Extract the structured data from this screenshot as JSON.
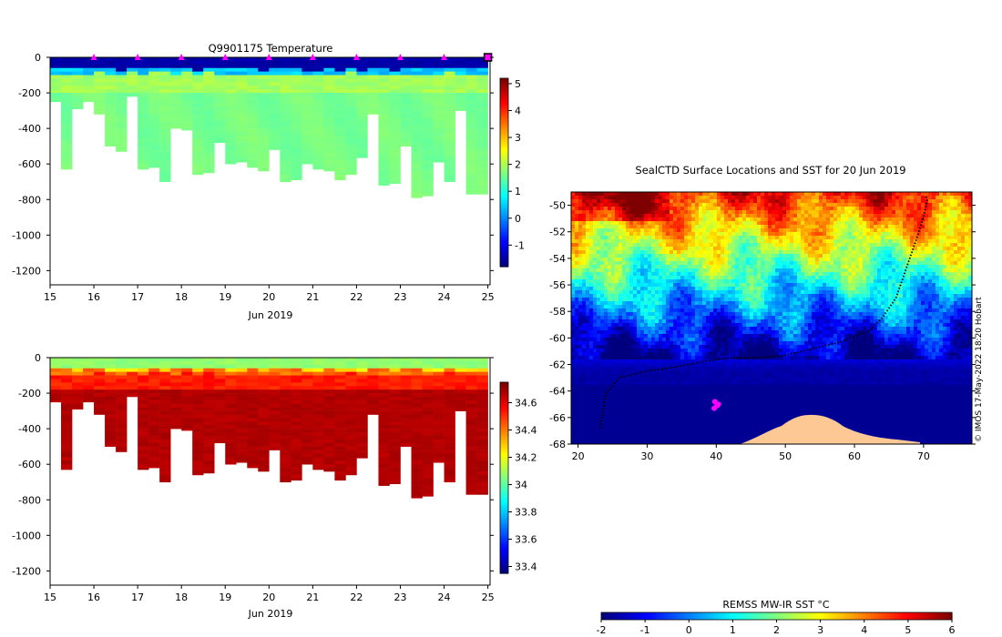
{
  "chart_data": [
    {
      "type": "heatmap",
      "title": "Q9901175  Temperature",
      "xlabel": "Jun 2019",
      "x_ticks": [
        "15",
        "16",
        "17",
        "18",
        "19",
        "20",
        "21",
        "22",
        "23",
        "24",
        "25"
      ],
      "xlim": [
        15,
        25.05
      ],
      "ylim": [
        -1280,
        0
      ],
      "y_ticks": [
        "0",
        "-200",
        "-400",
        "-600",
        "-800",
        "-1000",
        "-1200"
      ],
      "y_tick_values": [
        0,
        -200,
        -400,
        -600,
        -800,
        -1000,
        -1200
      ],
      "profile_markers_day": [
        16,
        17,
        18,
        19,
        20,
        21,
        22,
        23,
        24
      ],
      "last_marker_day": 25,
      "colorbar": {
        "min": -1.8,
        "max": 5.2,
        "ticks": [
          "-1",
          "0",
          "1",
          "2",
          "3",
          "4",
          "5"
        ],
        "tick_values": [
          -1,
          0,
          1,
          2,
          3,
          4,
          5
        ],
        "colors": [
          "#00007f",
          "#0000ff",
          "#0080ff",
          "#00ffff",
          "#80ff80",
          "#ffff00",
          "#ff8000",
          "#ff0000",
          "#7f0000"
        ]
      },
      "surface_value": -1.6,
      "thermocline_value": 0.2,
      "deep_value": 1.6,
      "profile_start_day": [
        15.0,
        15.25,
        15.5,
        15.75,
        16.0,
        16.25,
        16.5,
        16.75,
        17.0,
        17.25,
        17.5,
        17.75,
        18.0,
        18.25,
        18.5,
        18.75,
        19.0,
        19.25,
        19.5,
        19.75,
        20.0,
        20.25,
        20.5,
        20.75,
        21.0,
        21.25,
        21.5,
        21.75,
        22.0,
        22.25,
        22.5,
        22.75,
        23.0,
        23.25,
        23.5,
        23.75,
        24.0,
        24.25,
        24.5,
        24.75
      ],
      "profile_max_depth": [
        -250,
        -630,
        -290,
        -250,
        -320,
        -500,
        -530,
        -220,
        -630,
        -620,
        -700,
        -400,
        -410,
        -660,
        -650,
        -480,
        -600,
        -590,
        -620,
        -640,
        -520,
        -700,
        -690,
        -600,
        -630,
        -640,
        -690,
        -660,
        -565,
        -320,
        -720,
        -710,
        -500,
        -790,
        -780,
        -590,
        -700,
        -300,
        -770,
        -770
      ]
    },
    {
      "type": "heatmap",
      "title": "",
      "xlabel": "Jun 2019",
      "x_ticks": [
        "15",
        "16",
        "17",
        "18",
        "19",
        "20",
        "21",
        "22",
        "23",
        "24",
        "25"
      ],
      "xlim": [
        15,
        25.05
      ],
      "ylim": [
        -1280,
        0
      ],
      "y_ticks": [
        "0",
        "-200",
        "-400",
        "-600",
        "-800",
        "-1000",
        "-1200"
      ],
      "y_tick_values": [
        0,
        -200,
        -400,
        -600,
        -800,
        -1000,
        -1200
      ],
      "colorbar": {
        "min": 33.35,
        "max": 34.75,
        "ticks": [
          "33.4",
          "33.6",
          "33.8",
          "34",
          "34.2",
          "34.4",
          "34.6"
        ],
        "tick_values": [
          33.4,
          33.6,
          33.8,
          34.0,
          34.2,
          34.4,
          34.6
        ],
        "colors": [
          "#00007f",
          "#0000ff",
          "#0080ff",
          "#00ffff",
          "#80ff80",
          "#ffff00",
          "#ff8000",
          "#ff0000",
          "#7f0000"
        ]
      },
      "surface_value": 34.05,
      "mid_value": 34.55,
      "deep_value": 34.68
    },
    {
      "type": "heatmap",
      "title": "SealCTD Surface Locations and SST for 20 Jun 2019",
      "xlabel": "",
      "x_ticks": [
        "20",
        "30",
        "40",
        "50",
        "60",
        "70"
      ],
      "x_tick_values": [
        20,
        30,
        40,
        50,
        60,
        70
      ],
      "xlim": [
        19,
        77
      ],
      "ylim": [
        -68,
        -49
      ],
      "y_ticks": [
        "-50",
        "-52",
        "-54",
        "-56",
        "-58",
        "-60",
        "-62",
        "-64",
        "-66",
        "-68"
      ],
      "y_tick_values": [
        -50,
        -52,
        -54,
        -56,
        -58,
        -60,
        -62,
        -64,
        -66,
        -68
      ],
      "land_color": "#fdc894",
      "track_lon": [
        23.2,
        24,
        26,
        30,
        34,
        38,
        42,
        46,
        50,
        54,
        58,
        62,
        64,
        66,
        67,
        68,
        69,
        69.8,
        70.3,
        70.5,
        70.3
      ],
      "track_lat": [
        -66.8,
        -64.2,
        -63.0,
        -62.5,
        -62.2,
        -61.8,
        -61.5,
        -61.5,
        -61.3,
        -60.8,
        -60.3,
        -59.5,
        -58.5,
        -57.0,
        -55.5,
        -54.0,
        -52.5,
        -51.2,
        -50.2,
        -49.6,
        -49.3
      ],
      "recent_points": [
        [
          39.8,
          -64.8
        ],
        [
          40.3,
          -65.0
        ],
        [
          39.7,
          -65.3
        ],
        [
          40.1,
          -65.1
        ]
      ],
      "colorbar": {
        "label": "REMSS MW-IR SST °C",
        "min": -2,
        "max": 6,
        "ticks": [
          "-2",
          "-1",
          "0",
          "1",
          "2",
          "3",
          "4",
          "5",
          "6"
        ],
        "tick_values": [
          -2,
          -1,
          0,
          1,
          2,
          3,
          4,
          5,
          6
        ],
        "colors": [
          "#00007f",
          "#0000ff",
          "#0080ff",
          "#00ffff",
          "#80ff80",
          "#ffff00",
          "#ff8000",
          "#ff0000",
          "#7f0000"
        ]
      }
    }
  ],
  "credit": "© IMOS 17-May-2022 18:20 Hobart"
}
